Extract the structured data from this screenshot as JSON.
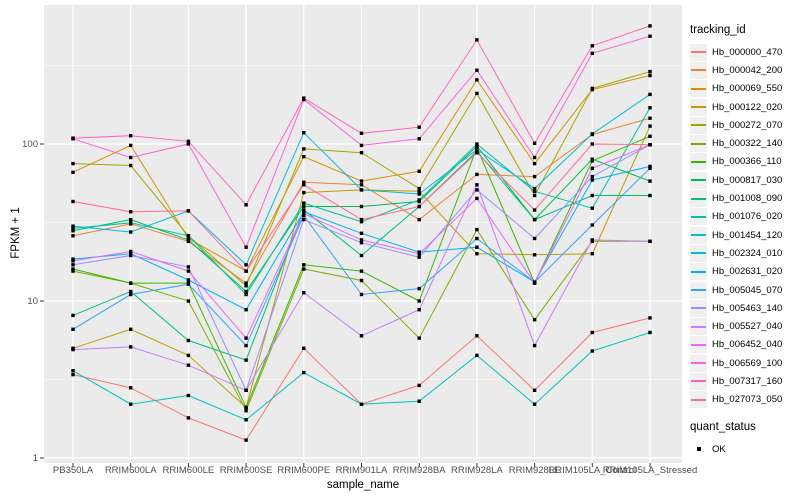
{
  "figure": {
    "background": "#FFFFFF",
    "panel_background": "#EBEBEB",
    "grid_color": "#FFFFFF",
    "axis_text_color": "#4D4D4D",
    "tick_mark_color": "#333333",
    "point_color": "#000000"
  },
  "chart_data": {
    "type": "line",
    "title": "",
    "xlabel": "sample_name",
    "ylabel": "FPKM + 1",
    "y_scale": "log10",
    "y_ticks": [
      1,
      10,
      100
    ],
    "y_minor_ticks": [
      3.1623,
      31.623,
      316.23
    ],
    "ylim": [
      0.93,
      760
    ],
    "grid": true,
    "legend": {
      "title": "tracking_id",
      "position": "right"
    },
    "quant_legend": {
      "title": "quant_status",
      "items": [
        {
          "label": "OK",
          "shape": "square",
          "color": "#000000"
        }
      ]
    },
    "point_shape": "square",
    "categories": [
      "PB350LA",
      "RRIM600LA",
      "RRIM600LE",
      "RRIM600SE",
      "RRIM600PE",
      "RRIM901LA",
      "RRIM928BA",
      "RRIM928LA",
      "RRIM928LE",
      "RRIM105LA_Control",
      "RRIM105LA_Stressed"
    ],
    "series": [
      {
        "name": "Hb_000000_470",
        "color": "#F8766D",
        "values": [
          3.4,
          2.8,
          1.8,
          1.3,
          5.0,
          2.2,
          2.9,
          6.0,
          2.7,
          6.3,
          7.8
        ]
      },
      {
        "name": "Hb_000042_200",
        "color": "#EA8331",
        "values": [
          26,
          31,
          24,
          13,
          57,
          55,
          33,
          64,
          62,
          115,
          146
        ]
      },
      {
        "name": "Hb_000069_550",
        "color": "#D89000",
        "values": [
          66,
          98,
          25,
          15.5,
          83,
          58,
          67,
          256,
          75,
          222,
          273
        ]
      },
      {
        "name": "Hb_000122_020",
        "color": "#C09B00",
        "values": [
          5.0,
          6.6,
          4.5,
          2.1,
          49,
          51,
          50,
          20,
          19.7,
          20,
          130
        ]
      },
      {
        "name": "Hb_000272_070",
        "color": "#A3A500",
        "values": [
          75,
          73,
          26,
          12.5,
          93,
          88,
          52,
          210,
          47,
          226,
          289
        ]
      },
      {
        "name": "Hb_000322_140",
        "color": "#7CAE00",
        "values": [
          15.5,
          13,
          10,
          2.0,
          16,
          13.5,
          5.8,
          28.5,
          7.6,
          24,
          24
        ]
      },
      {
        "name": "Hb_000366_110",
        "color": "#39B600",
        "values": [
          16,
          13,
          13,
          2.1,
          17,
          15.5,
          10,
          95,
          13,
          78,
          112
        ]
      },
      {
        "name": "Hb_000817_030",
        "color": "#00BB4E",
        "values": [
          28,
          33,
          24.5,
          11.5,
          40,
          40,
          43,
          97,
          33,
          80,
          58
        ]
      },
      {
        "name": "Hb_001008_090",
        "color": "#00BF7D",
        "values": [
          8.1,
          11.5,
          5.6,
          4.2,
          38,
          19.5,
          40,
          90,
          33,
          47,
          47
        ]
      },
      {
        "name": "Hb_001076_020",
        "color": "#00C1A3",
        "values": [
          29,
          31.5,
          26,
          11,
          42,
          32,
          44,
          100,
          50,
          39,
          170
        ]
      },
      {
        "name": "Hb_001454_120",
        "color": "#00BFC4",
        "values": [
          3.6,
          2.2,
          2.5,
          1.75,
          3.5,
          2.2,
          2.3,
          4.5,
          2.2,
          4.8,
          6.3
        ]
      },
      {
        "name": "Hb_002324_010",
        "color": "#00BAE0",
        "values": [
          30,
          27.5,
          37.5,
          17,
          118,
          51,
          48,
          92,
          52,
          116,
          207
        ]
      },
      {
        "name": "Hb_002631_020",
        "color": "#00B0F6",
        "values": [
          18.5,
          20,
          13.6,
          8.8,
          37,
          27,
          20.5,
          22,
          13.2,
          59,
          72
        ]
      },
      {
        "name": "Hb_005045_070",
        "color": "#35A2FF",
        "values": [
          6.6,
          11,
          12.8,
          5.2,
          35,
          11,
          12,
          25,
          13.2,
          30.5,
          70
        ]
      },
      {
        "name": "Hb_005463_140",
        "color": "#9590FF",
        "values": [
          17,
          19.5,
          16.5,
          2.7,
          33,
          23.5,
          19,
          51,
          25,
          62,
          99
        ]
      },
      {
        "name": "Hb_005527_040",
        "color": "#C77CFF",
        "values": [
          4.9,
          5.1,
          3.9,
          2.7,
          11.3,
          6.0,
          8.8,
          55,
          5.2,
          24.5,
          24
        ]
      },
      {
        "name": "Hb_006452_040",
        "color": "#E76BF3",
        "values": [
          18,
          20.7,
          15.5,
          5.8,
          36,
          24.5,
          20,
          45,
          13,
          70,
          99
        ]
      },
      {
        "name": "Hb_006569_100",
        "color": "#FA62DB",
        "values": [
          108,
          82,
          100,
          22,
          192,
          98,
          108,
          295,
          82,
          378,
          486
        ]
      },
      {
        "name": "Hb_007317_160",
        "color": "#FF62BC",
        "values": [
          109,
          113,
          104,
          41,
          196,
          117,
          128,
          460,
          101,
          422,
          565
        ]
      },
      {
        "name": "Hb_027073_050",
        "color": "#FF6A98",
        "values": [
          43,
          37,
          37.5,
          15.5,
          55,
          33,
          40,
          88,
          38,
          100,
          99
        ]
      }
    ]
  }
}
